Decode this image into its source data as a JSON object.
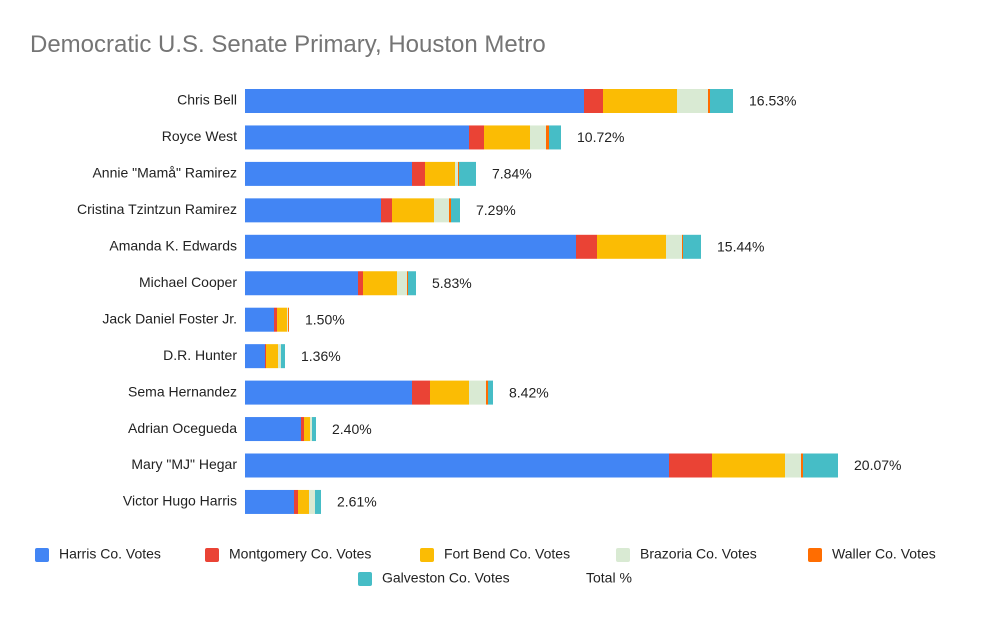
{
  "chart_data": {
    "type": "stacked-bar-horizontal",
    "title": "Democratic U.S. Senate Primary, Houston Metro",
    "categories": [
      "Chris Bell",
      "Royce West",
      "Annie \"Mamå\" Ramirez",
      "Cristina Tzintzun Ramirez",
      "Amanda K. Edwards",
      "Michael Cooper",
      "Jack Daniel Foster Jr.",
      "D.R. Hunter",
      "Sema Hernandez",
      "Adrian Ocegueda",
      "Mary \"MJ\" Hegar",
      "Victor Hugo Harris"
    ],
    "xlim": [
      0,
      70000
    ],
    "series": [
      {
        "name": "Harris Co. Votes",
        "color": "#4285f4",
        "values": [
          33900,
          22400,
          16700,
          13600,
          33100,
          11300,
          2900,
          2000,
          16700,
          5600,
          42400,
          4900
        ]
      },
      {
        "name": "Montgomery Co. Votes",
        "color": "#ea4335",
        "values": [
          1900,
          1500,
          1300,
          1100,
          2100,
          500,
          300,
          100,
          1800,
          300,
          4300,
          400
        ]
      },
      {
        "name": "Fort Bend Co. Votes",
        "color": "#fbbc04",
        "values": [
          7400,
          4600,
          3000,
          4200,
          6900,
          3400,
          1000,
          1200,
          3900,
          600,
          7300,
          1100
        ]
      },
      {
        "name": "Brazoria Co.  Votes",
        "color": "#d9ead3",
        "values": [
          3100,
          1600,
          300,
          1500,
          1600,
          1000,
          100,
          300,
          1700,
          200,
          1600,
          600
        ]
      },
      {
        "name": "Waller Co.  Votes",
        "color": "#ff6d01",
        "values": [
          200,
          300,
          100,
          200,
          100,
          100,
          100,
          0,
          200,
          0,
          200,
          0
        ]
      },
      {
        "name": "Galveston Co. Votes",
        "color": "#46bdc6",
        "values": [
          2300,
          1200,
          1700,
          900,
          1800,
          800,
          0,
          400,
          500,
          400,
          3500,
          600
        ]
      },
      {
        "name": "Total %",
        "color": "#ffffff",
        "values": [
          16.53,
          10.72,
          7.84,
          7.29,
          15.44,
          5.83,
          1.5,
          1.36,
          8.42,
          2.4,
          20.07,
          2.61
        ],
        "value_labels": [
          "16.53%",
          "10.72%",
          "7.84%",
          "7.29%",
          "15.44%",
          "5.83%",
          "1.50%",
          "1.36%",
          "8.42%",
          "2.40%",
          "20.07%",
          "2.61%"
        ]
      }
    ]
  }
}
